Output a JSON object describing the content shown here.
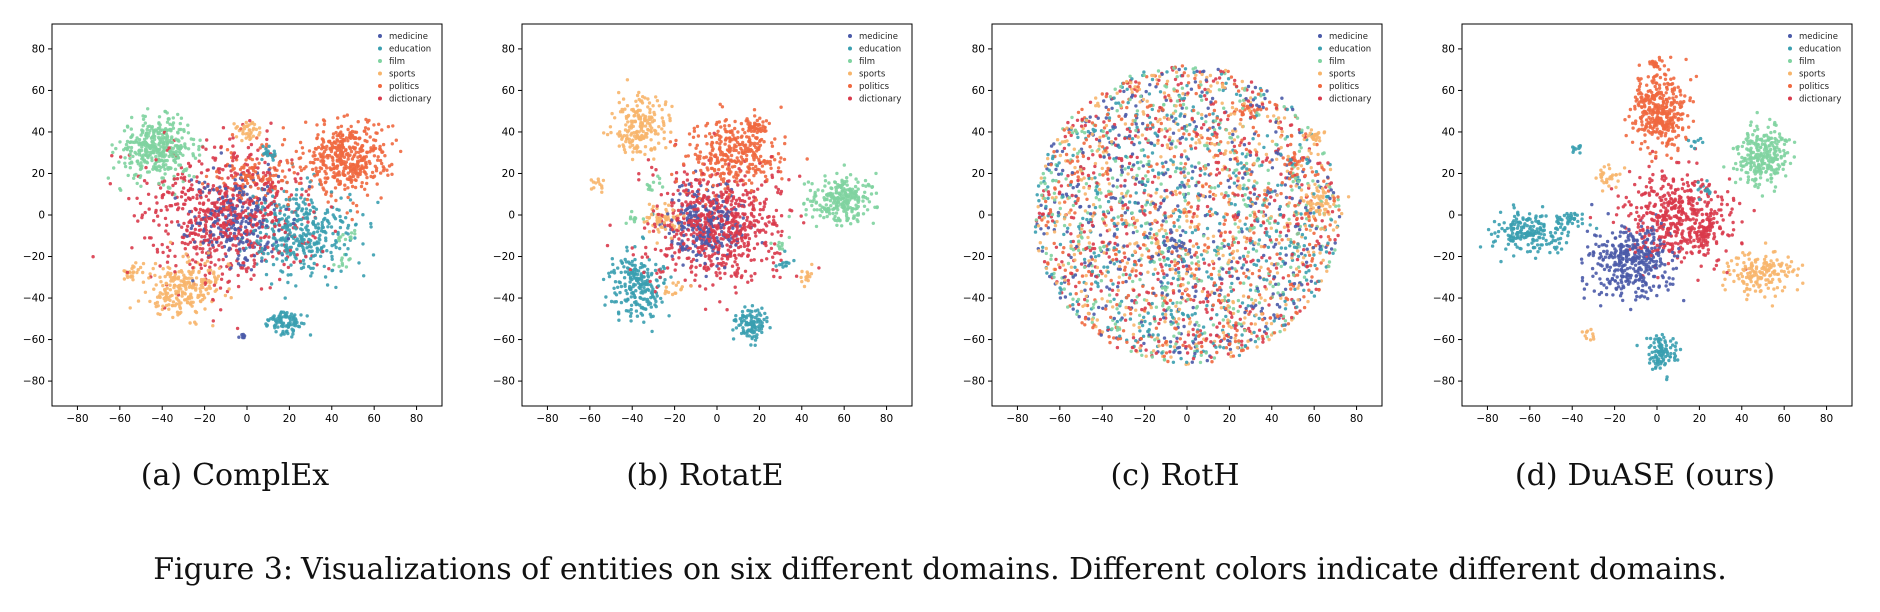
{
  "legend_labels": [
    "medicine",
    "education",
    "film",
    "sports",
    "politics",
    "dictionary"
  ],
  "colors": {
    "medicine": "#4a5aa8",
    "education": "#3a9fb0",
    "film": "#7fd3a0",
    "sports": "#f7b56b",
    "politics": "#f0683f",
    "dictionary": "#d93a4b"
  },
  "chart_data": [
    {
      "type": "scatter",
      "label": "(a)",
      "name": "ComplEx",
      "xlim": [
        -92,
        92
      ],
      "ylim": [
        -92,
        92
      ],
      "xticks": [
        -80,
        -60,
        -40,
        -20,
        0,
        20,
        40,
        60,
        80
      ],
      "yticks": [
        -80,
        -60,
        -40,
        -20,
        0,
        20,
        40,
        60,
        80
      ],
      "legend": "top-right",
      "clusters": [
        {
          "domain": "film",
          "cx": -42,
          "cy": 32,
          "sx": 9,
          "sy": 7,
          "n": 380
        },
        {
          "domain": "politics",
          "cx": 47,
          "cy": 28,
          "sx": 10,
          "sy": 9,
          "n": 420
        },
        {
          "domain": "dictionary",
          "cx": -10,
          "cy": 0,
          "sx": 20,
          "sy": 17,
          "n": 650
        },
        {
          "domain": "medicine",
          "cx": -5,
          "cy": -2,
          "sx": 11,
          "sy": 11,
          "n": 260
        },
        {
          "domain": "education",
          "cx": 25,
          "cy": -8,
          "sx": 12,
          "sy": 10,
          "n": 360
        },
        {
          "domain": "education",
          "cx": 18,
          "cy": -52,
          "sx": 4,
          "sy": 3,
          "n": 90
        },
        {
          "domain": "sports",
          "cx": -30,
          "cy": -35,
          "sx": 9,
          "sy": 7,
          "n": 240
        },
        {
          "domain": "sports",
          "cx": 0,
          "cy": 40,
          "sx": 3,
          "sy": 2,
          "n": 35
        },
        {
          "domain": "medicine",
          "cx": -2,
          "cy": -58,
          "sx": 1,
          "sy": 1,
          "n": 8
        },
        {
          "domain": "education",
          "cx": 10,
          "cy": 30,
          "sx": 2,
          "sy": 2,
          "n": 20
        },
        {
          "domain": "film",
          "cx": 48,
          "cy": -10,
          "sx": 2,
          "sy": 2,
          "n": 12
        },
        {
          "domain": "film",
          "cx": 45,
          "cy": -22,
          "sx": 2,
          "sy": 2,
          "n": 10
        },
        {
          "domain": "sports",
          "cx": -55,
          "cy": -28,
          "sx": 3,
          "sy": 2,
          "n": 22
        },
        {
          "domain": "politics",
          "cx": 5,
          "cy": 20,
          "sx": 10,
          "sy": 8,
          "n": 120
        }
      ]
    },
    {
      "type": "scatter",
      "label": "(b)",
      "name": "RotatE",
      "xlim": [
        -92,
        92
      ],
      "ylim": [
        -92,
        92
      ],
      "xticks": [
        -80,
        -60,
        -40,
        -20,
        0,
        20,
        40,
        60,
        80
      ],
      "yticks": [
        -80,
        -60,
        -40,
        -20,
        0,
        20,
        40,
        60,
        80
      ],
      "legend": "top-right",
      "clusters": [
        {
          "domain": "sports",
          "cx": -36,
          "cy": 43,
          "sx": 6,
          "sy": 7,
          "n": 200
        },
        {
          "domain": "politics",
          "cx": 8,
          "cy": 30,
          "sx": 11,
          "sy": 9,
          "n": 320
        },
        {
          "domain": "dictionary",
          "cx": 0,
          "cy": -6,
          "sx": 15,
          "sy": 14,
          "n": 650
        },
        {
          "domain": "medicine",
          "cx": -5,
          "cy": -5,
          "sx": 9,
          "sy": 9,
          "n": 240
        },
        {
          "domain": "film",
          "cx": 58,
          "cy": 7,
          "sx": 8,
          "sy": 5,
          "n": 260
        },
        {
          "domain": "education",
          "cx": -38,
          "cy": -33,
          "sx": 6,
          "sy": 8,
          "n": 220
        },
        {
          "domain": "education",
          "cx": 16,
          "cy": -52,
          "sx": 4,
          "sy": 4,
          "n": 110
        },
        {
          "domain": "sports",
          "cx": -26,
          "cy": -2,
          "sx": 4,
          "sy": 4,
          "n": 60
        },
        {
          "domain": "sports",
          "cx": 42,
          "cy": -30,
          "sx": 2,
          "sy": 2,
          "n": 15
        },
        {
          "domain": "sports",
          "cx": -58,
          "cy": 15,
          "sx": 2,
          "sy": 2,
          "n": 12
        },
        {
          "domain": "film",
          "cx": -30,
          "cy": 15,
          "sx": 2,
          "sy": 2,
          "n": 12
        },
        {
          "domain": "film",
          "cx": -40,
          "cy": -2,
          "sx": 2,
          "sy": 2,
          "n": 10
        },
        {
          "domain": "education",
          "cx": 32,
          "cy": -22,
          "sx": 2,
          "sy": 2,
          "n": 12
        },
        {
          "domain": "film",
          "cx": 30,
          "cy": -14,
          "sx": 2,
          "sy": 2,
          "n": 10
        },
        {
          "domain": "politics",
          "cx": 18,
          "cy": 43,
          "sx": 3,
          "sy": 2,
          "n": 40
        },
        {
          "domain": "sports",
          "cx": -20,
          "cy": -36,
          "sx": 3,
          "sy": 2,
          "n": 15
        }
      ]
    },
    {
      "type": "scatter",
      "label": "(c)",
      "name": "RotH",
      "xlim": [
        -92,
        92
      ],
      "ylim": [
        -92,
        92
      ],
      "xticks": [
        -80,
        -60,
        -40,
        -20,
        0,
        20,
        40,
        60,
        80
      ],
      "yticks": [
        -80,
        -60,
        -40,
        -20,
        0,
        20,
        40,
        60,
        80
      ],
      "legend": "top-right",
      "clusters": [
        {
          "domain": "dictionary",
          "disc": true,
          "cx": 0,
          "cy": 0,
          "r": 72,
          "n": 520
        },
        {
          "domain": "politics",
          "disc": true,
          "cx": 0,
          "cy": 0,
          "r": 72,
          "n": 520
        },
        {
          "domain": "education",
          "disc": true,
          "cx": 0,
          "cy": 0,
          "r": 72,
          "n": 520
        },
        {
          "domain": "sports",
          "disc": true,
          "cx": 0,
          "cy": 0,
          "r": 72,
          "n": 520
        },
        {
          "domain": "medicine",
          "disc": true,
          "cx": 0,
          "cy": 0,
          "r": 72,
          "n": 450
        },
        {
          "domain": "film",
          "disc": true,
          "cx": 0,
          "cy": 0,
          "r": 72,
          "n": 450
        },
        {
          "domain": "sports",
          "cx": 62,
          "cy": 5,
          "sx": 4,
          "sy": 4,
          "n": 60
        },
        {
          "domain": "sports",
          "cx": 60,
          "cy": 38,
          "sx": 3,
          "sy": 2,
          "n": 25
        },
        {
          "domain": "politics",
          "cx": 28,
          "cy": 50,
          "sx": 3,
          "sy": 2,
          "n": 25
        },
        {
          "domain": "politics",
          "cx": 50,
          "cy": 25,
          "sx": 3,
          "sy": 3,
          "n": 20
        },
        {
          "domain": "medicine",
          "cx": -5,
          "cy": -15,
          "sx": 3,
          "sy": 3,
          "n": 25
        }
      ]
    },
    {
      "type": "scatter",
      "label": "(d)",
      "name": "DuASE (ours)",
      "xlim": [
        -92,
        92
      ],
      "ylim": [
        -92,
        92
      ],
      "xticks": [
        -80,
        -60,
        -40,
        -20,
        0,
        20,
        40,
        60,
        80
      ],
      "yticks": [
        -80,
        -60,
        -40,
        -20,
        0,
        20,
        40,
        60,
        80
      ],
      "legend": "top-right",
      "clusters": [
        {
          "domain": "politics",
          "cx": 1,
          "cy": 50,
          "sx": 6,
          "sy": 9,
          "n": 360
        },
        {
          "domain": "politics",
          "cx": 0,
          "cy": 73,
          "sx": 1.5,
          "sy": 1.5,
          "n": 20
        },
        {
          "domain": "dictionary",
          "cx": 10,
          "cy": 0,
          "sx": 13,
          "sy": 11,
          "n": 480
        },
        {
          "domain": "medicine",
          "cx": -12,
          "cy": -22,
          "sx": 9,
          "sy": 9,
          "n": 380
        },
        {
          "domain": "film",
          "cx": 50,
          "cy": 28,
          "sx": 6,
          "sy": 7,
          "n": 260
        },
        {
          "domain": "education",
          "cx": -60,
          "cy": -8,
          "sx": 9,
          "sy": 5,
          "n": 200
        },
        {
          "domain": "education",
          "cx": 2,
          "cy": -66,
          "sx": 4,
          "sy": 4,
          "n": 100
        },
        {
          "domain": "sports",
          "cx": 48,
          "cy": -28,
          "sx": 9,
          "sy": 5,
          "n": 160
        },
        {
          "domain": "sports",
          "cx": -23,
          "cy": 18,
          "sx": 3,
          "sy": 3,
          "n": 30
        },
        {
          "domain": "sports",
          "cx": -32,
          "cy": -58,
          "sx": 1.5,
          "sy": 1.5,
          "n": 10
        },
        {
          "domain": "education",
          "cx": -38,
          "cy": 31,
          "sx": 1.5,
          "sy": 1.5,
          "n": 10
        },
        {
          "domain": "education",
          "cx": -40,
          "cy": -2,
          "sx": 3,
          "sy": 2,
          "n": 30
        },
        {
          "domain": "education",
          "cx": 18,
          "cy": 35,
          "sx": 1.5,
          "sy": 1.5,
          "n": 8
        },
        {
          "domain": "education",
          "cx": 23,
          "cy": 12,
          "sx": 2,
          "sy": 2,
          "n": 12
        },
        {
          "domain": "dictionary",
          "cx": 22,
          "cy": -10,
          "sx": 4,
          "sy": 4,
          "n": 40
        }
      ]
    }
  ],
  "caption": {
    "figure_no": "Figure 3:",
    "text": "Visualizations of entities on six different domains. Different colors indicate different domains."
  }
}
